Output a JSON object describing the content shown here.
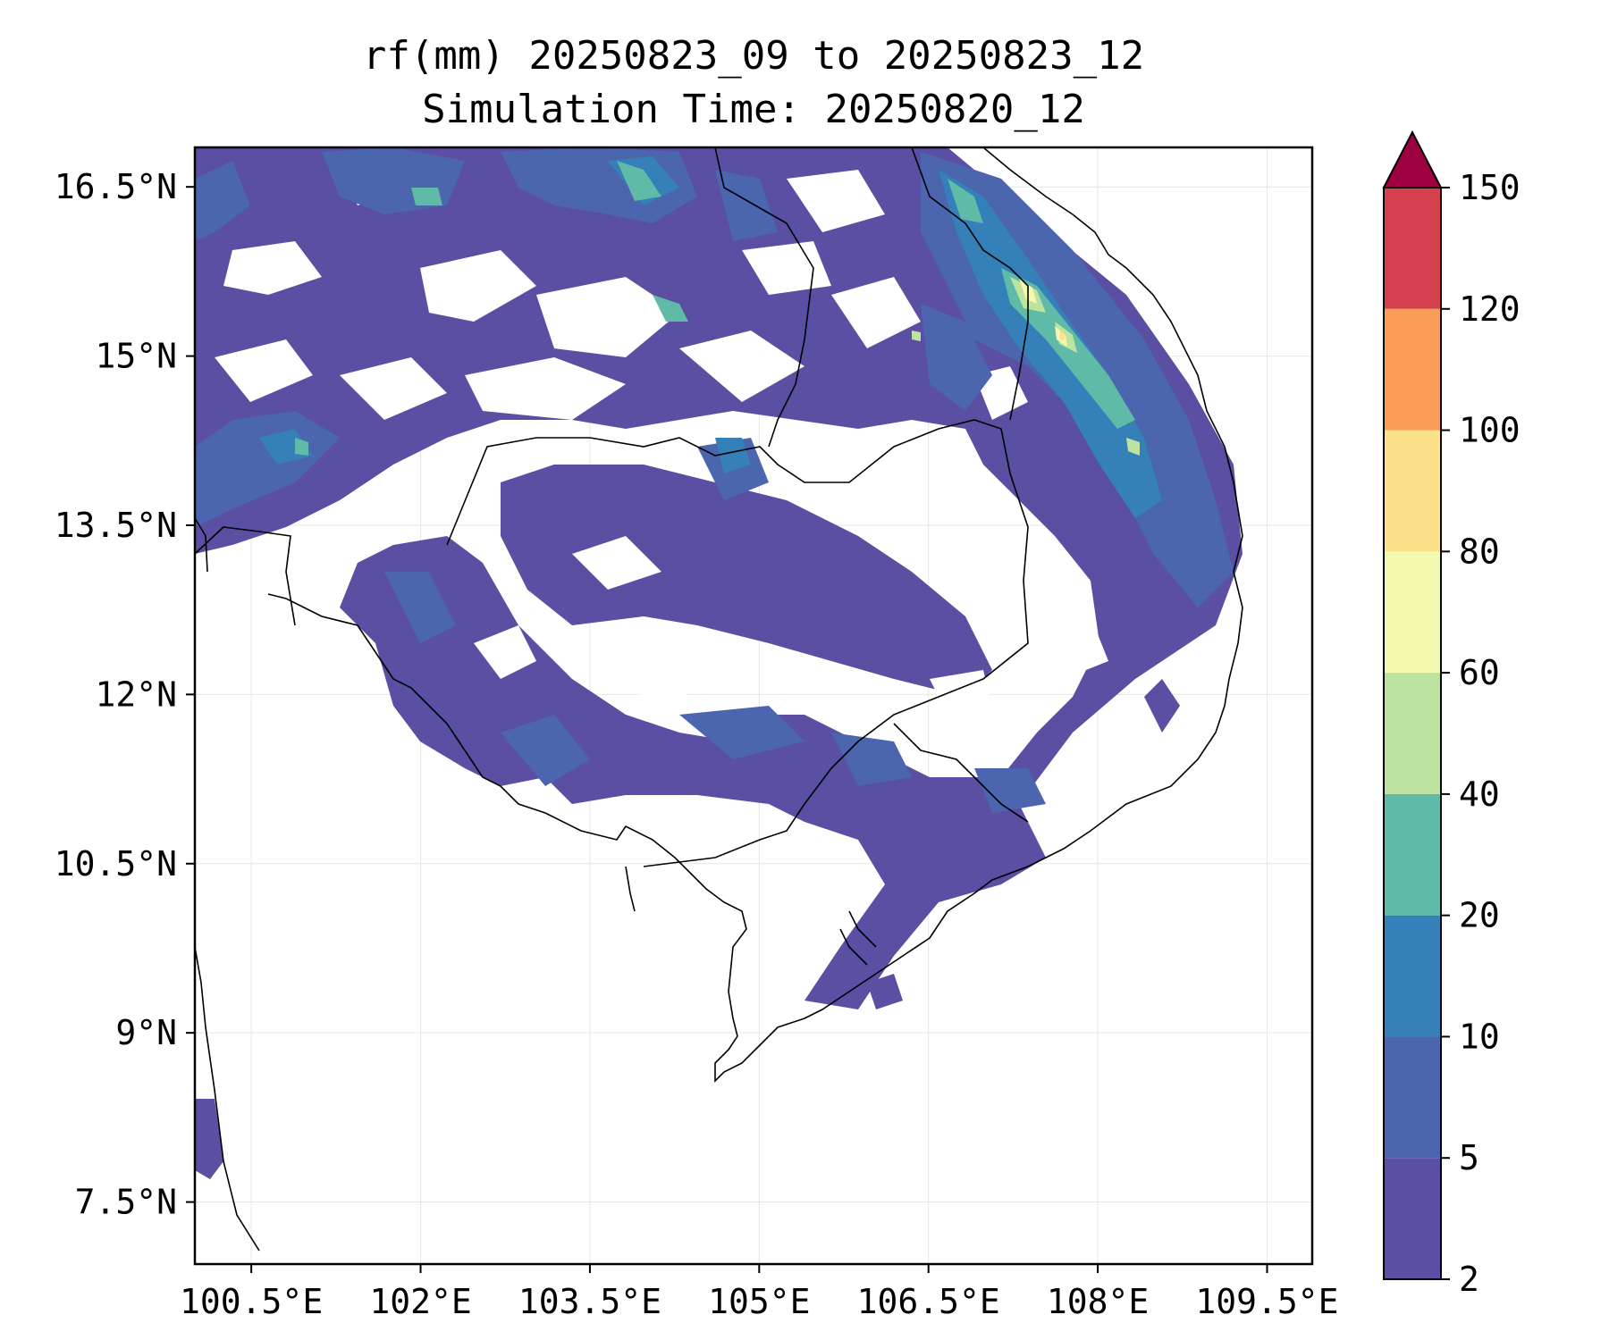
{
  "title_line1": "rf(mm) 20250823_09 to 20250823_12",
  "title_line2": "Simulation Time: 20250820_12",
  "map": {
    "lon_range": [
      100.0,
      109.9
    ],
    "lat_range": [
      6.95,
      16.85
    ],
    "x_ticks": [
      "100.5°E",
      "102°E",
      "103.5°E",
      "105°E",
      "106.5°E",
      "108°E",
      "109.5°E"
    ],
    "x_tick_values": [
      100.5,
      102,
      103.5,
      105,
      106.5,
      108,
      109.5
    ],
    "y_ticks": [
      "16.5°N",
      "15°N",
      "13.5°N",
      "12°N",
      "10.5°N",
      "9°N",
      "7.5°N"
    ],
    "y_tick_values": [
      16.5,
      15,
      13.5,
      12,
      10.5,
      9,
      7.5
    ],
    "gridlines": true
  },
  "colorbar": {
    "labels": [
      "2",
      "5",
      "10",
      "20",
      "40",
      "60",
      "80",
      "100",
      "120",
      "150"
    ],
    "levels": [
      2,
      5,
      10,
      20,
      40,
      60,
      80,
      100,
      120,
      150
    ],
    "colors": [
      "#5a4fa2",
      "#4b65ae",
      "#3580b9",
      "#5fbaa8",
      "#bde3a0",
      "#f3f9ae",
      "#fde08a",
      "#f99d58",
      "#d5404e"
    ],
    "extend_color": "#9e0142",
    "extend": "max"
  }
}
